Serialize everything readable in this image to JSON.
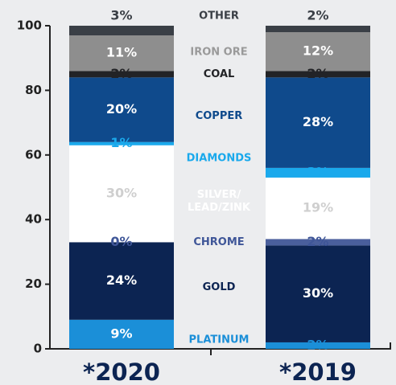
{
  "chart_data": {
    "type": "stacked_bar",
    "categories": [
      "*2020",
      "*2019"
    ],
    "ylim": [
      0,
      100
    ],
    "yticks": [
      0,
      20,
      40,
      60,
      80,
      100
    ],
    "series": [
      {
        "name": "PLATINUM",
        "color": "#1b8fd8",
        "label_color": "#1b8fd8",
        "values": [
          9,
          2
        ],
        "value_labels": [
          "9%",
          "2%"
        ]
      },
      {
        "name": "GOLD",
        "color": "#0c2452",
        "label_color": "#0c2452",
        "values": [
          24,
          30
        ],
        "value_labels": [
          "24%",
          "30%"
        ]
      },
      {
        "name": "CHROME",
        "color": "#4a5f9c",
        "label_color": "#3f5698",
        "values": [
          0,
          2
        ],
        "value_labels": [
          "0%",
          "2%"
        ]
      },
      {
        "name": "SILVER/\nLEAD/ZINK",
        "color": "#ffffff",
        "label_color": "#cfcfcf",
        "values": [
          30,
          19
        ],
        "value_labels": [
          "30%",
          "19%"
        ]
      },
      {
        "name": "DIAMONDS",
        "color": "#1aa9ec",
        "label_color": "#1aa9ec",
        "values": [
          1,
          3
        ],
        "value_labels": [
          "1%",
          "3%"
        ]
      },
      {
        "name": "COPPER",
        "color": "#0f4a8c",
        "label_color": "#0f4a8c",
        "values": [
          20,
          28
        ],
        "value_labels": [
          "20%",
          "28%"
        ]
      },
      {
        "name": "COAL",
        "color": "#222326",
        "label_color": "#222326",
        "values": [
          2,
          2
        ],
        "value_labels": [
          "2%",
          "2%"
        ]
      },
      {
        "name": "IRON ORE",
        "color": "#8e8e8e",
        "label_color": "#9a9a9a",
        "values": [
          11,
          12
        ],
        "value_labels": [
          "11%",
          "12%"
        ]
      },
      {
        "name": "OTHER",
        "color": "#3a3f46",
        "label_color": "#3a3f46",
        "values": [
          3,
          2
        ],
        "value_labels": [
          "3%",
          "2%"
        ]
      }
    ]
  }
}
